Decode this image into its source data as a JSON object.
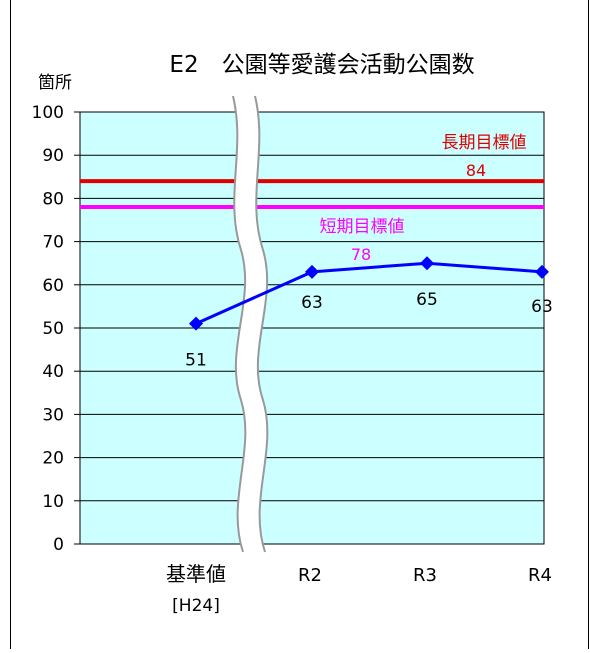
{
  "chart_data": {
    "type": "line",
    "title": "E2　公園等愛護会活動公園数",
    "ylabel": "箇所",
    "ylim": [
      0,
      100
    ],
    "yticks": [
      0,
      10,
      20,
      30,
      40,
      50,
      60,
      70,
      80,
      90,
      100
    ],
    "grid": true,
    "categories": [
      {
        "label": "基準値",
        "sub": "[H24]"
      },
      {
        "label": "R2",
        "sub": ""
      },
      {
        "label": "R3",
        "sub": ""
      },
      {
        "label": "R4",
        "sub": ""
      }
    ],
    "series": [
      {
        "values": [
          51,
          63,
          65,
          63
        ],
        "color": "#0000ff",
        "labels": [
          "51",
          "63",
          "65",
          "63"
        ]
      }
    ],
    "reference_lines": [
      {
        "name": "長期目標値",
        "value": 84,
        "value_label": "84",
        "color": "#e00000"
      },
      {
        "name": "短期目標値",
        "value": 78,
        "value_label": "78",
        "color": "#ff00ff"
      }
    ],
    "axis_break": "between 基準値 and R2",
    "plot_background": "#ccffff"
  }
}
